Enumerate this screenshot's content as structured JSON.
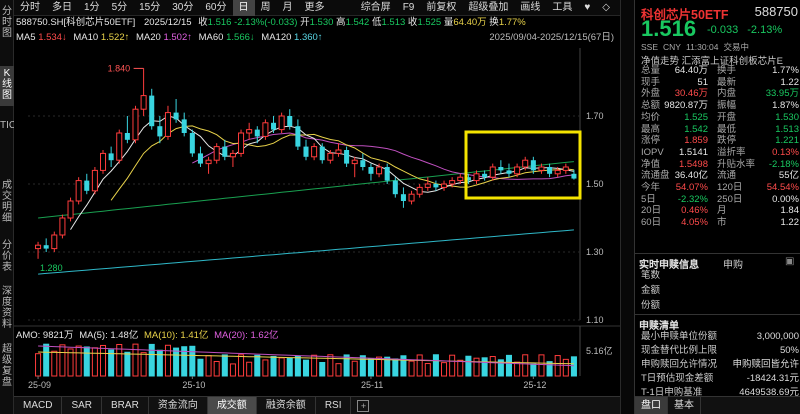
{
  "toolbar": {
    "tabs": [
      "分时",
      "多日",
      "1分",
      "5分",
      "15分",
      "30分",
      "60分",
      "日",
      "周",
      "月",
      "更多"
    ],
    "active": "日",
    "right": [
      "综合屏",
      "F9",
      "前复权",
      "超级叠加",
      "画线",
      "工具",
      "♥",
      "◇"
    ]
  },
  "sidebar": {
    "items": [
      "分时图",
      "K线图",
      "TICK",
      "成交明细",
      "分价表",
      "深度资料",
      "超级复盘"
    ],
    "active": "K线图"
  },
  "info": {
    "code": "588750.SH[科创芯片50ETF]",
    "date": "2025/12/15",
    "close_l": "收",
    "close": "1.516",
    "pct": "-2.13%(-0.033)",
    "open_l": "开",
    "open": "1.530",
    "high_l": "高",
    "high": "1.542",
    "low_l": "低",
    "low": "1.513",
    "last_l": "收",
    "last": "1.525",
    "amount_l": "量",
    "amount": "64.40万",
    "turn_l": "换",
    "turn": "1.77%"
  },
  "ma": {
    "ma5_l": "MA5",
    "ma5": "1.534↓",
    "ma10_l": "MA10",
    "ma10": "1.522↑",
    "ma20_l": "MA20",
    "ma20": "1.502↑",
    "ma60_l": "MA60",
    "ma60": "1.566↓",
    "ma120_l": "MA120",
    "ma120": "1.360↑",
    "range": "2025/09/04-2025/12/15(67日)"
  },
  "chart_data": {
    "type": "candlestick",
    "dates": [
      "25-09",
      "25-10",
      "25-11",
      "25-12"
    ],
    "ohlc": [
      [
        1.31,
        1.33,
        1.28,
        1.32
      ],
      [
        1.32,
        1.34,
        1.3,
        1.31
      ],
      [
        1.31,
        1.36,
        1.3,
        1.35
      ],
      [
        1.35,
        1.41,
        1.34,
        1.4
      ],
      [
        1.4,
        1.46,
        1.39,
        1.45
      ],
      [
        1.45,
        1.52,
        1.44,
        1.51
      ],
      [
        1.51,
        1.53,
        1.47,
        1.48
      ],
      [
        1.48,
        1.55,
        1.47,
        1.54
      ],
      [
        1.54,
        1.6,
        1.53,
        1.59
      ],
      [
        1.59,
        1.61,
        1.55,
        1.57
      ],
      [
        1.57,
        1.66,
        1.56,
        1.65
      ],
      [
        1.65,
        1.7,
        1.62,
        1.63
      ],
      [
        1.63,
        1.73,
        1.62,
        1.72
      ],
      [
        1.72,
        1.84,
        1.7,
        1.76
      ],
      [
        1.76,
        1.78,
        1.66,
        1.67
      ],
      [
        1.67,
        1.7,
        1.62,
        1.64
      ],
      [
        1.64,
        1.73,
        1.63,
        1.71
      ],
      [
        1.71,
        1.75,
        1.68,
        1.69
      ],
      [
        1.69,
        1.71,
        1.64,
        1.65
      ],
      [
        1.65,
        1.66,
        1.58,
        1.59
      ],
      [
        1.59,
        1.61,
        1.55,
        1.56
      ],
      [
        1.56,
        1.58,
        1.53,
        1.57
      ],
      [
        1.57,
        1.62,
        1.56,
        1.61
      ],
      [
        1.61,
        1.63,
        1.57,
        1.58
      ],
      [
        1.58,
        1.6,
        1.55,
        1.59
      ],
      [
        1.59,
        1.66,
        1.58,
        1.65
      ],
      [
        1.65,
        1.68,
        1.63,
        1.66
      ],
      [
        1.66,
        1.67,
        1.62,
        1.64
      ],
      [
        1.64,
        1.69,
        1.63,
        1.68
      ],
      [
        1.68,
        1.7,
        1.65,
        1.66
      ],
      [
        1.66,
        1.71,
        1.65,
        1.7
      ],
      [
        1.7,
        1.72,
        1.66,
        1.67
      ],
      [
        1.67,
        1.69,
        1.6,
        1.61
      ],
      [
        1.61,
        1.63,
        1.57,
        1.58
      ],
      [
        1.58,
        1.62,
        1.57,
        1.61
      ],
      [
        1.61,
        1.62,
        1.56,
        1.57
      ],
      [
        1.57,
        1.6,
        1.56,
        1.59
      ],
      [
        1.59,
        1.62,
        1.58,
        1.6
      ],
      [
        1.6,
        1.61,
        1.55,
        1.56
      ],
      [
        1.56,
        1.58,
        1.52,
        1.57
      ],
      [
        1.57,
        1.59,
        1.54,
        1.55
      ],
      [
        1.55,
        1.56,
        1.51,
        1.53
      ],
      [
        1.53,
        1.56,
        1.52,
        1.55
      ],
      [
        1.55,
        1.56,
        1.5,
        1.51
      ],
      [
        1.51,
        1.52,
        1.46,
        1.47
      ],
      [
        1.47,
        1.49,
        1.43,
        1.45
      ],
      [
        1.45,
        1.48,
        1.44,
        1.47
      ],
      [
        1.47,
        1.5,
        1.46,
        1.49
      ],
      [
        1.49,
        1.52,
        1.48,
        1.5
      ],
      [
        1.5,
        1.51,
        1.48,
        1.49
      ],
      [
        1.49,
        1.51,
        1.48,
        1.5
      ],
      [
        1.5,
        1.52,
        1.49,
        1.51
      ],
      [
        1.51,
        1.53,
        1.5,
        1.52
      ],
      [
        1.52,
        1.53,
        1.5,
        1.51
      ],
      [
        1.51,
        1.54,
        1.5,
        1.53
      ],
      [
        1.53,
        1.54,
        1.51,
        1.52
      ],
      [
        1.52,
        1.56,
        1.51,
        1.55
      ],
      [
        1.55,
        1.57,
        1.53,
        1.54
      ],
      [
        1.54,
        1.56,
        1.52,
        1.53
      ],
      [
        1.53,
        1.56,
        1.52,
        1.55
      ],
      [
        1.55,
        1.58,
        1.54,
        1.57
      ],
      [
        1.57,
        1.58,
        1.53,
        1.54
      ],
      [
        1.54,
        1.56,
        1.53,
        1.55
      ],
      [
        1.55,
        1.56,
        1.52,
        1.53
      ],
      [
        1.53,
        1.55,
        1.52,
        1.54
      ],
      [
        1.54,
        1.56,
        1.53,
        1.55
      ],
      [
        1.53,
        1.542,
        1.513,
        1.516
      ]
    ],
    "ylim": [
      1.1,
      1.9
    ],
    "yticks": [
      "1.70",
      "1.50",
      "1.30",
      "1.10"
    ],
    "annotations": {
      "max": "1.840",
      "min": "1.280"
    },
    "volume_label": "5.16亿",
    "amo": {
      "amo_l": "AMO:",
      "amo": "9821万",
      "ma5_l": "MA(5):",
      "ma5": "1.48亿",
      "ma10_l": "MA(10):",
      "ma10": "1.41亿",
      "ma20_l": "MA(20):",
      "ma20": "1.62亿"
    }
  },
  "bottom_tabs": [
    "MACD",
    "SAR",
    "BRAR",
    "资金流向",
    "成交额",
    "融资余额",
    "RSI"
  ],
  "bottom_active": "成交额",
  "panel": {
    "name": "科创芯片50ETF",
    "code": "588750",
    "price": "1.516",
    "chg": "-0.033",
    "pct": "-2.13%",
    "meta": [
      "SSE",
      "CNY",
      "11:30:04",
      "交易中"
    ],
    "track": "净值走势   汇添富上证科创板芯片E",
    "rows": [
      [
        "总量",
        "64.40万",
        "换手",
        "1.77%"
      ],
      [
        "现手",
        "51",
        "最新",
        "1.22"
      ],
      [
        "外盘",
        "30.46万",
        "内盘",
        "33.95万"
      ],
      [
        "总额",
        "9820.87万",
        "振幅",
        "1.87%"
      ],
      [
        "均价",
        "1.525",
        "开盘",
        "1.530"
      ],
      [
        "最高",
        "1.542",
        "最低",
        "1.513"
      ],
      [
        "涨停",
        "1.859",
        "跌停",
        "1.221"
      ],
      [
        "IOPV",
        "1.5141",
        "溢折率",
        "0.13%"
      ],
      [
        "净值",
        "1.5498",
        "升贴水率",
        "-2.18%"
      ],
      [
        "流通盘",
        "36.40亿",
        "流通",
        "55亿"
      ],
      [
        "今年",
        "54.07%",
        "120日",
        "54.54%"
      ],
      [
        "5日",
        "-2.32%",
        "250日",
        "0.00%"
      ],
      [
        "20日",
        "0.46%",
        "月",
        "1.84"
      ],
      [
        "60日",
        "4.05%",
        "市",
        "1.22"
      ]
    ],
    "sect1": "实时申赎信息",
    "sect1_r": "申购",
    "sect1_rows": [
      [
        "笔数",
        ""
      ],
      [
        "金额",
        ""
      ],
      [
        "份额",
        ""
      ]
    ],
    "sect2": "申赎清单",
    "sect2_rows": [
      [
        "最小申赎单位份额",
        "3,000,000"
      ],
      [
        "现金替代比例上限",
        "50%"
      ],
      [
        "申购赎回允许情况",
        "申购赎回皆允许"
      ],
      [
        "T日预估现金差额",
        "-18424.31元"
      ],
      [
        "T-1日申购基准",
        "4649538.69元"
      ]
    ],
    "tabs": [
      "盘口",
      "基本"
    ],
    "active_tab": "盘口"
  }
}
